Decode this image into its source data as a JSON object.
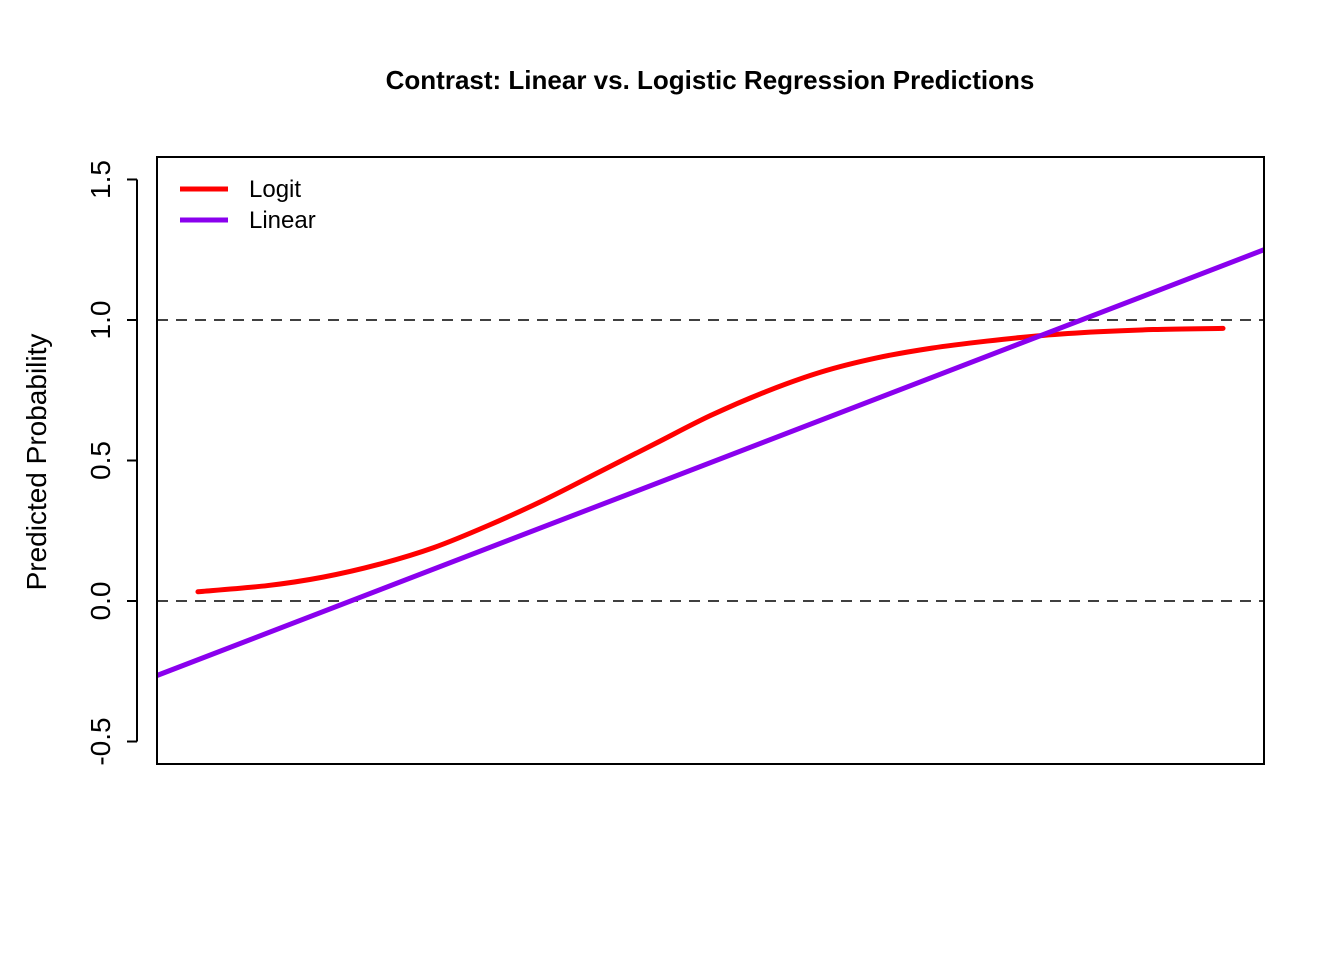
{
  "chart_data": {
    "type": "line",
    "title": "Contrast: Linear vs. Logistic Regression Predictions",
    "xlabel": "",
    "ylabel": "Predicted Probability",
    "ylim": [
      -0.58,
      1.58
    ],
    "yticks": [
      -0.5,
      0.0,
      0.5,
      1.0,
      1.5
    ],
    "ytick_labels": [
      "-0.5",
      "0.0",
      "0.5",
      "1.0",
      "1.5"
    ],
    "x_axis_shown": false,
    "grid": false,
    "reference_lines": [
      {
        "y": 0.0,
        "style": "dashed",
        "color": "#000000"
      },
      {
        "y": 1.0,
        "style": "dashed",
        "color": "#000000"
      }
    ],
    "legend": {
      "position": "top-left"
    },
    "x_range": [
      0,
      1
    ],
    "series": [
      {
        "name": "Logit",
        "color": "#ff0000",
        "x": [
          0.037,
          0.1,
          0.15,
          0.2,
          0.25,
          0.3,
          0.35,
          0.4,
          0.45,
          0.5,
          0.55,
          0.6,
          0.65,
          0.7,
          0.75,
          0.8,
          0.85,
          0.9,
          0.963
        ],
        "y": [
          0.033,
          0.055,
          0.085,
          0.13,
          0.19,
          0.27,
          0.36,
          0.46,
          0.56,
          0.66,
          0.745,
          0.815,
          0.865,
          0.9,
          0.925,
          0.945,
          0.958,
          0.966,
          0.97
        ]
      },
      {
        "name": "Linear",
        "color": "#8a00ee",
        "x": [
          0.0,
          1.0
        ],
        "y": [
          -0.265,
          1.25
        ]
      }
    ]
  }
}
